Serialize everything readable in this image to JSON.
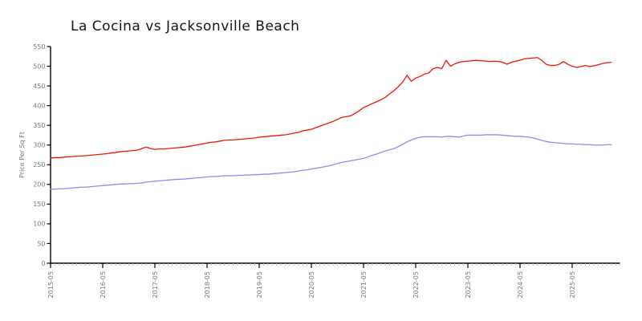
{
  "page": {
    "background": "#ffffff"
  },
  "chart_data": {
    "type": "line",
    "title": "La Cocina vs Jacksonville Beach",
    "xlabel": "",
    "ylabel": "Price Per Sq Ft",
    "ylim": [
      0,
      550
    ],
    "yticks": [
      0,
      50,
      100,
      150,
      200,
      250,
      300,
      350,
      400,
      450,
      500,
      550
    ],
    "x_start": "2015-05",
    "x_interval": "month",
    "x_major_tick_labels": [
      "2015-05",
      "2016-05",
      "2017-05",
      "2018-05",
      "2019-05",
      "2020-05",
      "2021-05",
      "2022-05",
      "2023-05",
      "2024-05",
      "2025-05"
    ],
    "x_major_tick_month_indices": [
      0,
      12,
      24,
      36,
      48,
      60,
      72,
      84,
      96,
      108,
      120
    ],
    "grid": false,
    "legend": "none",
    "axis_color": "#000000",
    "tick_label_color": "#7a7a7a",
    "minor_tick_color": "#bcbcbc",
    "series": [
      {
        "name": "La Cocina",
        "color": "#f21505",
        "values": [
          267,
          268,
          268,
          269,
          270,
          271,
          272,
          272,
          273,
          274,
          275,
          276,
          277,
          278,
          280,
          281,
          283,
          284,
          285,
          286,
          287,
          291,
          295,
          291,
          289,
          290,
          290,
          291,
          292,
          293,
          294,
          295,
          297,
          299,
          301,
          303,
          305,
          307,
          308,
          310,
          312,
          313,
          313,
          314,
          315,
          316,
          317,
          318,
          320,
          321,
          322,
          323,
          324,
          325,
          326,
          328,
          330,
          332,
          336,
          338,
          340,
          344,
          348,
          352,
          356,
          360,
          365,
          370,
          372,
          374,
          380,
          387,
          395,
          400,
          405,
          410,
          415,
          421,
          430,
          438,
          448,
          460,
          477,
          462,
          470,
          474,
          480,
          483,
          494,
          497,
          494,
          515,
          500,
          506,
          510,
          512,
          513,
          514,
          515,
          514,
          513,
          512,
          513,
          512,
          510,
          505,
          510,
          513,
          515,
          519,
          520,
          521,
          522,
          515,
          505,
          502,
          502,
          505,
          512,
          505,
          500,
          497,
          499,
          502,
          499,
          501,
          504,
          507,
          509,
          510
        ]
      },
      {
        "name": "Jacksonville Beach",
        "color": "#8b8dec",
        "values": [
          188,
          188,
          189,
          189,
          190,
          191,
          192,
          193,
          193,
          194,
          195,
          196,
          197,
          198,
          199,
          200,
          201,
          201,
          202,
          202,
          203,
          204,
          206,
          207,
          208,
          209,
          210,
          211,
          212,
          213,
          213,
          214,
          215,
          216,
          217,
          218,
          219,
          220,
          220,
          221,
          222,
          222,
          222,
          223,
          223,
          224,
          224,
          225,
          225,
          226,
          226,
          227,
          228,
          229,
          230,
          231,
          232,
          234,
          236,
          237,
          239,
          241,
          243,
          245,
          247,
          250,
          253,
          256,
          258,
          260,
          262,
          264,
          266,
          270,
          274,
          277,
          281,
          285,
          288,
          291,
          296,
          302,
          308,
          313,
          317,
          320,
          321,
          321,
          321,
          321,
          320,
          322,
          322,
          321,
          320,
          323,
          325,
          325,
          325,
          325,
          326,
          326,
          326,
          326,
          325,
          324,
          323,
          322,
          322,
          321,
          320,
          318,
          315,
          312,
          309,
          307,
          306,
          305,
          304,
          303,
          303,
          302,
          302,
          301,
          301,
          300,
          300,
          300,
          301,
          301
        ]
      }
    ]
  }
}
